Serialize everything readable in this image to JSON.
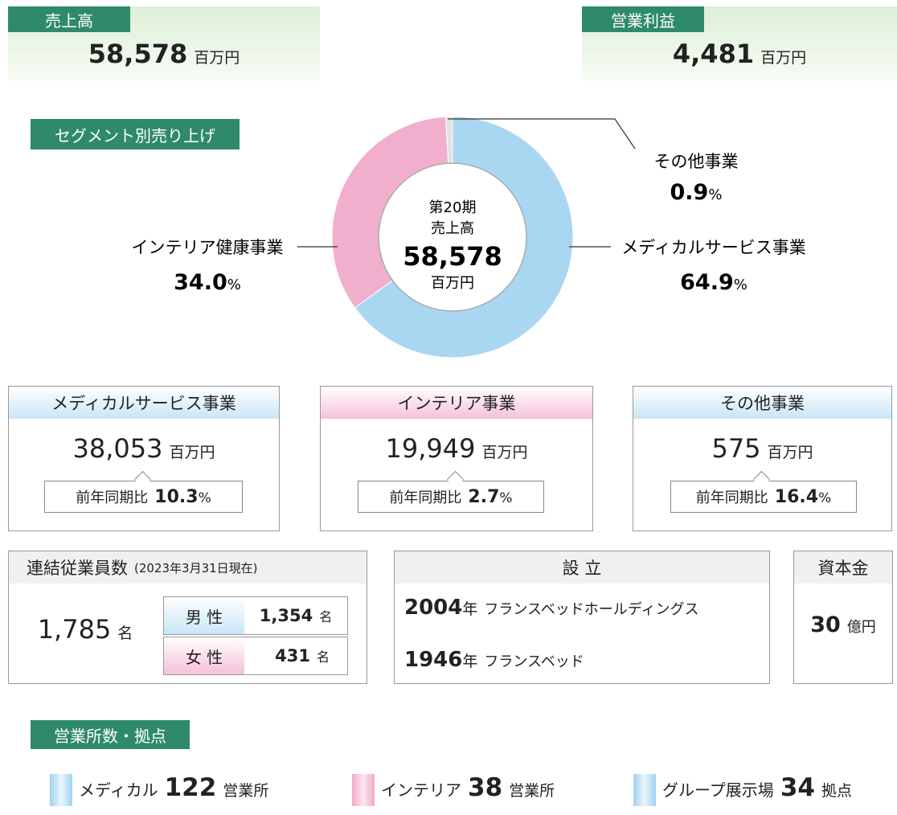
{
  "sales": {
    "label": "売上高",
    "value": "58,578",
    "unit": "百万円"
  },
  "operating_profit": {
    "label": "営業利益",
    "value": "4,481",
    "unit": "百万円"
  },
  "chart_data": {
    "type": "pie",
    "title": "セグメント別売り上げ",
    "center": [
      "第20期",
      "売上高",
      "58,578",
      "百万円"
    ],
    "categories": [
      "メディカルサービス事業",
      "インテリア健康事業",
      "その他事業"
    ],
    "values": [
      64.9,
      34.0,
      0.9
    ],
    "value_labels": [
      "64.9",
      "34.0",
      "0.9"
    ],
    "unit": "%",
    "colors": [
      "#a9d7f2",
      "#f1afcd",
      "#e2e2dc"
    ]
  },
  "segments": [
    {
      "name": "メディカルサービス事業",
      "value": "38,053",
      "unit": "百万円",
      "compare_label": "前年同期比",
      "ratio": "10.3",
      "ratio_unit": "%"
    },
    {
      "name": "インテリア事業",
      "value": "19,949",
      "unit": "百万円",
      "compare_label": "前年同期比",
      "ratio": "2.7",
      "ratio_unit": "%"
    },
    {
      "name": "その他事業",
      "value": "575",
      "unit": "百万円",
      "compare_label": "前年同期比",
      "ratio": "16.4",
      "ratio_unit": "%"
    }
  ],
  "employees": {
    "title": "連結従業員数",
    "note": "(2023年3月31日現在)",
    "total": "1,785",
    "unit": "名",
    "male": {
      "label": "男 性",
      "value": "1,354",
      "unit": "名"
    },
    "female": {
      "label": "女 性",
      "value": "431",
      "unit": "名"
    }
  },
  "founded": {
    "title": "設 立",
    "rows": [
      {
        "year": "2004",
        "unit": "年",
        "name": "フランスベッドホールディングス"
      },
      {
        "year": "1946",
        "unit": "年",
        "name": "フランスベッド"
      }
    ]
  },
  "capital": {
    "title": "資本金",
    "value": "30",
    "unit": "億円"
  },
  "offices": {
    "title": "営業所数・拠点",
    "items": [
      {
        "name": "メディカル",
        "value": "122",
        "unit": "営業所"
      },
      {
        "name": "インテリア",
        "value": "38",
        "unit": "営業所"
      },
      {
        "name": "グループ展示場",
        "value": "34",
        "unit": "拠点"
      }
    ]
  }
}
